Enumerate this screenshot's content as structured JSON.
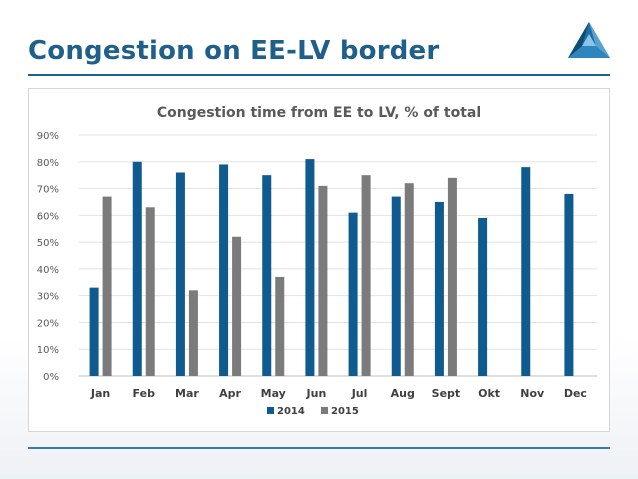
{
  "slide": {
    "title": "Congestion on EE-LV border"
  },
  "logo_icon": "triangle-logo-icon",
  "colors": {
    "accent": "#1f5f8b",
    "series_2014": "#0f5a8e",
    "series_2015": "#7b7b7b"
  },
  "chart_data": {
    "type": "bar",
    "title": "Congestion time from EE to LV, % of total",
    "xlabel": "",
    "ylabel": "",
    "categories": [
      "Jan",
      "Feb",
      "Mar",
      "Apr",
      "May",
      "Jun",
      "Jul",
      "Aug",
      "Sept",
      "Okt",
      "Nov",
      "Dec"
    ],
    "series": [
      {
        "name": "2014",
        "values": [
          33,
          80,
          76,
          79,
          75,
          81,
          61,
          67,
          65,
          59,
          78,
          68
        ]
      },
      {
        "name": "2015",
        "values": [
          67,
          63,
          32,
          52,
          37,
          71,
          75,
          72,
          74,
          null,
          null,
          null
        ]
      }
    ],
    "ylim": [
      0,
      90
    ],
    "yticks": [
      "0%",
      "10%",
      "20%",
      "30%",
      "40%",
      "50%",
      "60%",
      "70%",
      "80%",
      "90%"
    ],
    "grid": true,
    "legend": "bottom"
  }
}
